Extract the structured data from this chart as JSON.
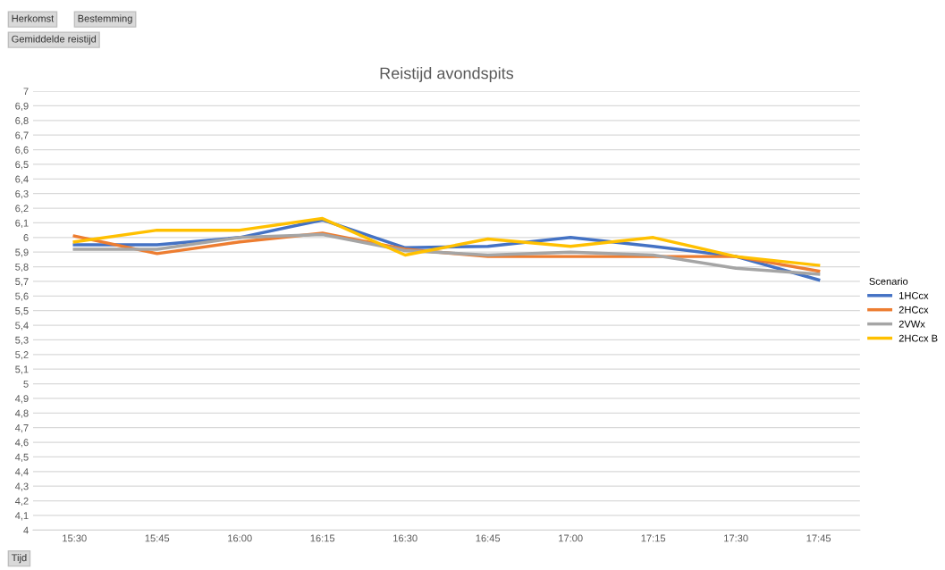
{
  "chart_data": {
    "type": "line",
    "title": "Reistijd avondspits",
    "legend_title": "Scenario",
    "legend": "right",
    "grid": "y",
    "marker": "none",
    "line_style": "solid",
    "annotations": [
      "Herkomst",
      "Bestemming",
      "Gemiddelde reistijd",
      "Tijd"
    ],
    "categories": [
      "15:30",
      "15:45",
      "16:00",
      "16:15",
      "16:30",
      "16:45",
      "17:00",
      "17:15",
      "17:30",
      "17:45"
    ],
    "series": [
      {
        "name": "1HCcx",
        "color": "#4472c4",
        "values": [
          5.95,
          5.95,
          6.0,
          6.12,
          5.93,
          5.94,
          6.0,
          5.94,
          5.87,
          5.71
        ]
      },
      {
        "name": "2HCcx",
        "color": "#ed7d31",
        "values": [
          6.01,
          5.89,
          5.97,
          6.03,
          5.92,
          5.87,
          5.87,
          5.87,
          5.87,
          5.77
        ]
      },
      {
        "name": "2VWx",
        "color": "#a5a5a5",
        "values": [
          5.92,
          5.92,
          6.0,
          6.02,
          5.91,
          5.88,
          5.9,
          5.88,
          5.79,
          5.75
        ]
      },
      {
        "name": "2HCcx B",
        "color": "#ffc000",
        "values": [
          5.97,
          6.05,
          6.05,
          6.13,
          5.88,
          5.99,
          5.94,
          6.0,
          5.87,
          5.81
        ]
      }
    ],
    "ylim": [
      4,
      7
    ],
    "yticks": [
      4,
      {
        "value": 4.1,
        "label": "4,1"
      },
      {
        "value": 4.2,
        "label": "4,2"
      },
      {
        "value": 4.3,
        "label": "4,3"
      },
      {
        "value": 4.4,
        "label": "4,4"
      },
      {
        "value": 4.5,
        "label": "4,5"
      },
      {
        "value": 4.6,
        "label": "4,6"
      },
      {
        "value": 4.7,
        "label": "4,7"
      },
      {
        "value": 4.8,
        "label": "4,8"
      },
      {
        "value": 4.9,
        "label": "4,9"
      },
      5,
      {
        "value": 5.1,
        "label": "5,1"
      },
      {
        "value": 5.2,
        "label": "5,2"
      },
      {
        "value": 5.3,
        "label": "5,3"
      },
      {
        "value": 5.4,
        "label": "5,4"
      },
      {
        "value": 5.5,
        "label": "5,5"
      },
      {
        "value": 5.6,
        "label": "5,6"
      },
      {
        "value": 5.7,
        "label": "5,7"
      },
      {
        "value": 5.8,
        "label": "5,8"
      },
      {
        "value": 5.9,
        "label": "5,9"
      },
      6,
      {
        "value": 6.1,
        "label": "6,1"
      },
      {
        "value": 6.2,
        "label": "6,2"
      },
      {
        "value": 6.3,
        "label": "6,3"
      },
      {
        "value": 6.4,
        "label": "6,4"
      },
      {
        "value": 6.5,
        "label": "6,5"
      },
      {
        "value": 6.6,
        "label": "6,6"
      },
      {
        "value": 6.7,
        "label": "6,7"
      },
      {
        "value": 6.8,
        "label": "6,8"
      },
      {
        "value": 6.9,
        "label": "6,9"
      },
      7
    ]
  }
}
